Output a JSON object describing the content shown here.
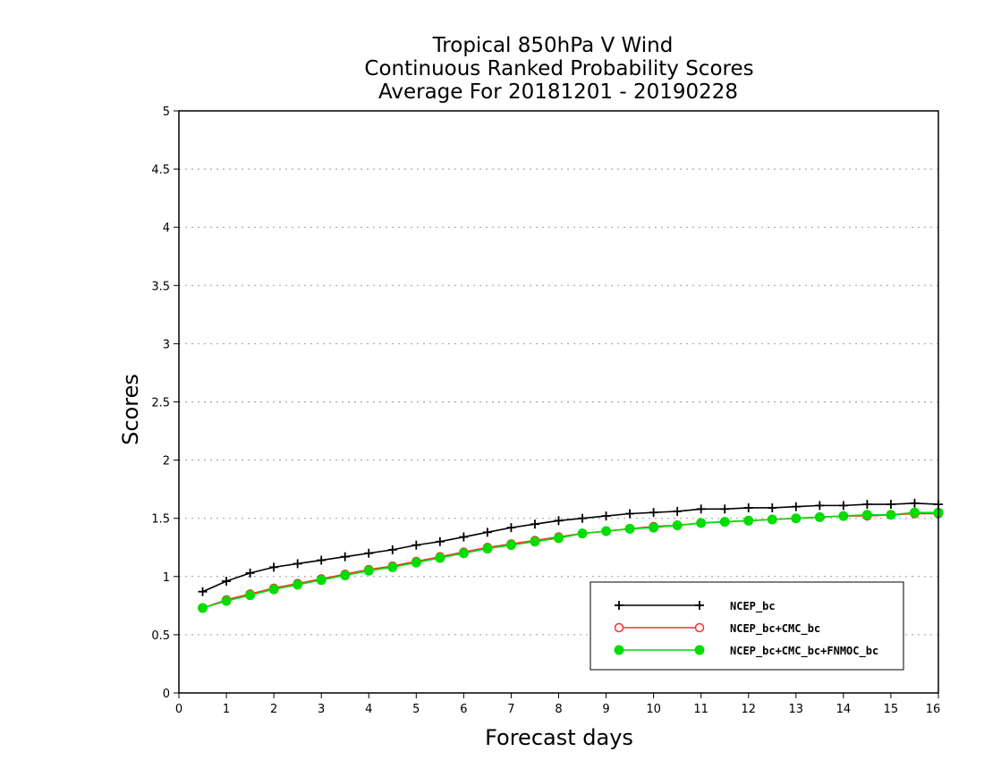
{
  "chart_data": {
    "type": "line",
    "title": [
      "Tropical 850hPa V Wind",
      "Continuous Ranked Probability Scores",
      "Average For 20181201 - 20190228"
    ],
    "xlabel": "Forecast days",
    "ylabel": "Scores",
    "xlim": [
      0,
      16
    ],
    "ylim": [
      0,
      5
    ],
    "xticks": [
      "0",
      "1",
      "2",
      "3",
      "4",
      "5",
      "6",
      "7",
      "8",
      "9",
      "10",
      "11",
      "12",
      "13",
      "14",
      "15",
      "16"
    ],
    "yticks": [
      "0",
      "0.5",
      "1",
      "1.5",
      "2",
      "2.5",
      "3",
      "3.5",
      "4",
      "4.5",
      "5"
    ],
    "grid": "horizontal-dotted",
    "legend_position": "bottom-right",
    "x": [
      0.5,
      1,
      1.5,
      2,
      2.5,
      3,
      3.5,
      4,
      4.5,
      5,
      5.5,
      6,
      6.5,
      7,
      7.5,
      8,
      8.5,
      9,
      9.5,
      10,
      10.5,
      11,
      11.5,
      12,
      12.5,
      13,
      13.5,
      14,
      14.5,
      15,
      15.5,
      16
    ],
    "series": [
      {
        "name": "NCEP_bc",
        "color": "#000000",
        "marker": "plus",
        "values": [
          0.87,
          0.96,
          1.03,
          1.08,
          1.11,
          1.14,
          1.17,
          1.2,
          1.23,
          1.27,
          1.3,
          1.34,
          1.38,
          1.42,
          1.45,
          1.48,
          1.5,
          1.52,
          1.54,
          1.55,
          1.56,
          1.58,
          1.58,
          1.59,
          1.59,
          1.6,
          1.61,
          1.61,
          1.62,
          1.62,
          1.63,
          1.62
        ]
      },
      {
        "name": "NCEP_bc+CMC_bc",
        "color": "#ff3030",
        "marker": "open-circle",
        "values": [
          0.73,
          0.8,
          0.85,
          0.9,
          0.94,
          0.98,
          1.02,
          1.06,
          1.09,
          1.13,
          1.17,
          1.21,
          1.25,
          1.28,
          1.31,
          1.34,
          1.37,
          1.39,
          1.41,
          1.43,
          1.44,
          1.46,
          1.47,
          1.48,
          1.49,
          1.5,
          1.51,
          1.52,
          1.52,
          1.53,
          1.54,
          1.54
        ]
      },
      {
        "name": "NCEP_bc+CMC_bc+FNMOC_bc",
        "color": "#00dd00",
        "marker": "filled-circle",
        "values": [
          0.73,
          0.79,
          0.84,
          0.89,
          0.93,
          0.97,
          1.01,
          1.05,
          1.08,
          1.12,
          1.16,
          1.2,
          1.24,
          1.27,
          1.3,
          1.33,
          1.37,
          1.39,
          1.41,
          1.42,
          1.44,
          1.46,
          1.47,
          1.48,
          1.49,
          1.5,
          1.51,
          1.52,
          1.53,
          1.53,
          1.55,
          1.55
        ]
      }
    ]
  }
}
